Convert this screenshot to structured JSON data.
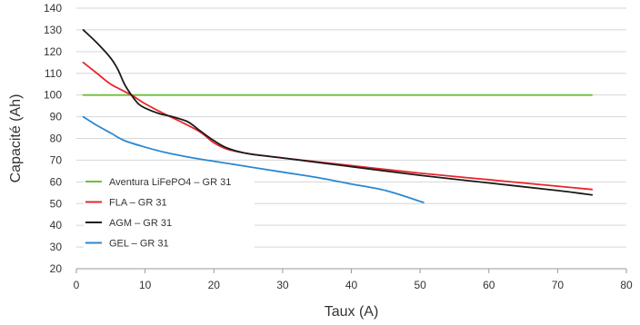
{
  "chart_data": {
    "type": "line",
    "title": "",
    "xlabel": "Taux (A)",
    "ylabel": "Capacité (Ah)",
    "xlim": [
      0,
      80
    ],
    "ylim": [
      20,
      140
    ],
    "x_ticks": [
      "0",
      "10",
      "20",
      "30",
      "40",
      "50",
      "60",
      "70",
      "80"
    ],
    "y_ticks": [
      "20",
      "30",
      "40",
      "50",
      "60",
      "70",
      "80",
      "90",
      "100",
      "110",
      "120",
      "130",
      "140"
    ],
    "grid": "horizontal",
    "legend_position": "bottom-left",
    "series": [
      {
        "name": "Aventura LiFePO4 – GR 31",
        "color": "#6cbf3c",
        "points": [
          [
            1,
            100
          ],
          [
            75,
            100
          ]
        ]
      },
      {
        "name": "FLA – GR 31",
        "color": "#e8252b",
        "points": [
          [
            1,
            115
          ],
          [
            3,
            110
          ],
          [
            5,
            105
          ],
          [
            8,
            100
          ],
          [
            10,
            96
          ],
          [
            13,
            91
          ],
          [
            15,
            88
          ],
          [
            18,
            83
          ],
          [
            20,
            78
          ],
          [
            22,
            75
          ],
          [
            25,
            73
          ],
          [
            30,
            71
          ],
          [
            40,
            67.5
          ],
          [
            50,
            64
          ],
          [
            60,
            61
          ],
          [
            70,
            58
          ],
          [
            75,
            56.5
          ]
        ]
      },
      {
        "name": "AGM – GR 31",
        "color": "#1a1a1a",
        "points": [
          [
            1,
            130
          ],
          [
            3,
            124
          ],
          [
            5,
            117
          ],
          [
            6,
            112
          ],
          [
            7,
            105
          ],
          [
            8,
            100
          ],
          [
            9,
            96
          ],
          [
            10,
            94
          ],
          [
            12,
            91.5
          ],
          [
            14,
            90
          ],
          [
            16,
            88
          ],
          [
            17,
            86
          ],
          [
            18,
            83.5
          ],
          [
            20,
            79
          ],
          [
            22,
            75.5
          ],
          [
            25,
            73
          ],
          [
            30,
            71
          ],
          [
            40,
            67
          ],
          [
            50,
            63
          ],
          [
            60,
            59.5
          ],
          [
            70,
            56
          ],
          [
            75,
            54
          ]
        ]
      },
      {
        "name": "GEL – GR 31",
        "color": "#2a88d0",
        "points": [
          [
            1,
            90
          ],
          [
            3,
            86
          ],
          [
            5,
            82.5
          ],
          [
            7,
            79
          ],
          [
            10,
            76
          ],
          [
            13,
            73.5
          ],
          [
            17,
            71
          ],
          [
            20,
            69.5
          ],
          [
            25,
            67
          ],
          [
            30,
            64.5
          ],
          [
            35,
            62
          ],
          [
            40,
            59
          ],
          [
            45,
            56
          ],
          [
            50.5,
            50.5
          ]
        ]
      }
    ]
  }
}
